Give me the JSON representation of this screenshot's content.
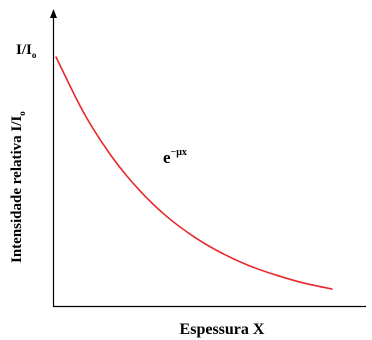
{
  "chart_data": {
    "type": "line",
    "title": "",
    "xlabel": "Espessura X",
    "ylabel_main": "Intensidade relativa I/I",
    "ylabel_sub": "o",
    "y_tick_label_main": "I/I",
    "y_tick_label_sub": "o",
    "annotation": {
      "base": "e",
      "exponent": "−μx"
    },
    "x": [
      0,
      0.5,
      1,
      1.5,
      2,
      2.5,
      3,
      3.5,
      4,
      4.5,
      5
    ],
    "y": [
      1.0,
      0.781,
      0.61,
      0.477,
      0.372,
      0.291,
      0.227,
      0.177,
      0.139,
      0.108,
      0.085
    ],
    "series": [
      {
        "values": [
          1.0,
          0.781,
          0.61,
          0.477,
          0.372,
          0.291,
          0.227,
          0.177,
          0.139,
          0.108,
          0.085
        ]
      }
    ],
    "xlim": [
      0,
      5
    ],
    "ylim": [
      0,
      1
    ],
    "grid": false,
    "colors": {
      "curve": "#e8282c",
      "axes": "#000000"
    }
  }
}
